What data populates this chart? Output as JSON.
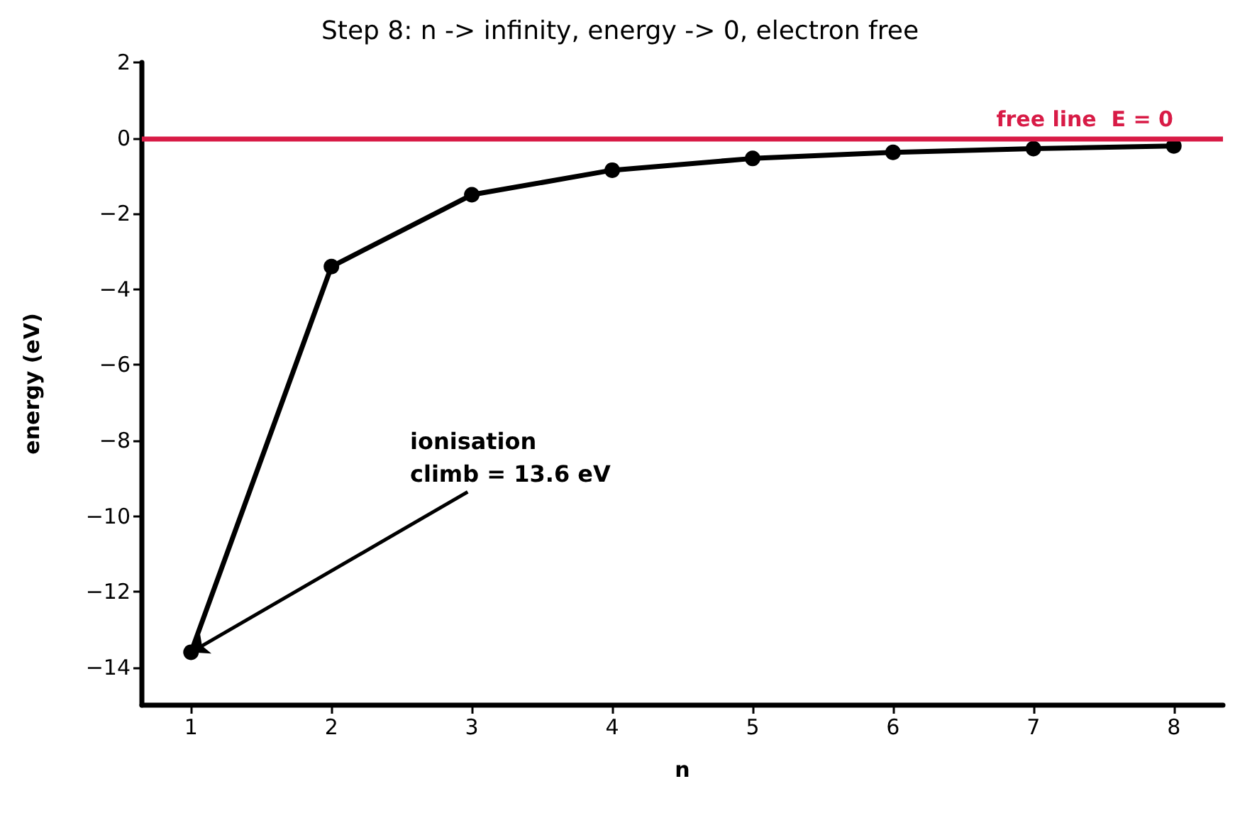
{
  "chart_data": {
    "type": "line",
    "title": "Step 8: n -> infinity, energy -> 0, electron free",
    "xlabel": "n",
    "ylabel": "energy (eV)",
    "x": [
      1,
      2,
      3,
      4,
      5,
      6,
      7,
      8
    ],
    "series": [
      {
        "color": "#000000",
        "values": [
          -13.6,
          -3.4,
          -1.5,
          -0.85,
          -0.54,
          -0.38,
          -0.28,
          -0.21
        ]
      }
    ],
    "xlim": [
      0.65,
      8.35
    ],
    "xticks": [
      1,
      2,
      3,
      4,
      5,
      6,
      7,
      8
    ],
    "ylim": [
      -15,
      2
    ],
    "yticks": [
      -14,
      -12,
      -10,
      -8,
      -6,
      -4,
      -2,
      0,
      2
    ],
    "ref_lines": [
      {
        "axis": "y",
        "value": 0,
        "label": "free line  E = 0",
        "color": "#d81b46",
        "line_style": "solid"
      }
    ],
    "annotations": [
      {
        "text": "ionisation\nclimb = 13.6 eV",
        "x": 1,
        "y": -13.6
      }
    ],
    "grid": false,
    "marker": "circle",
    "line_style": "solid"
  }
}
